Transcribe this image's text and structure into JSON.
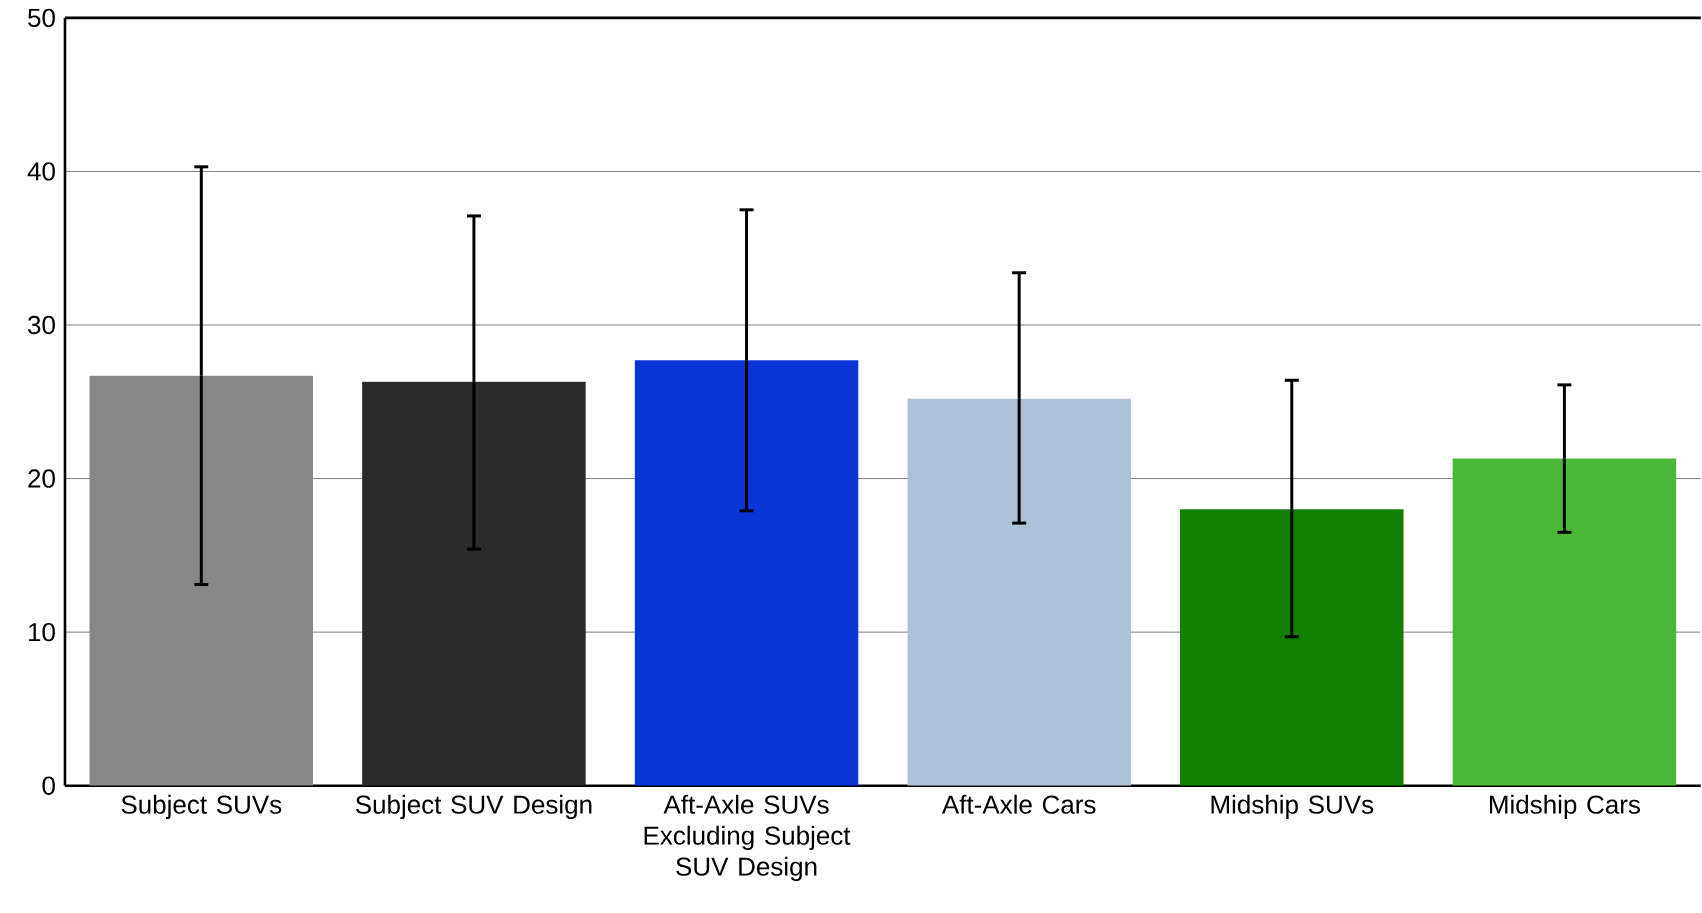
{
  "chart_data": {
    "type": "bar",
    "categories": [
      "Subject SUVs",
      "Subject SUV Design",
      "Aft-Axle SUVs Excluding Subject SUV Design",
      "Aft-Axle Cars",
      "Midship SUVs",
      "Midship Cars"
    ],
    "values": [
      26.7,
      26.3,
      27.7,
      25.2,
      18.0,
      21.3
    ],
    "colors": [
      "#878787",
      "#2b2b2b",
      "#0934d6",
      "#adc0d6",
      "#118003",
      "#4bb737"
    ],
    "errors": [
      [
        13.1,
        40.3
      ],
      [
        15.4,
        37.1
      ],
      [
        17.9,
        37.5
      ],
      [
        17.1,
        33.4
      ],
      [
        9.7,
        26.4
      ],
      [
        16.5,
        26.1
      ]
    ],
    "ylim": [
      0,
      50
    ],
    "yticks": [
      0,
      10,
      20,
      30,
      40,
      50
    ],
    "grid": "y"
  }
}
